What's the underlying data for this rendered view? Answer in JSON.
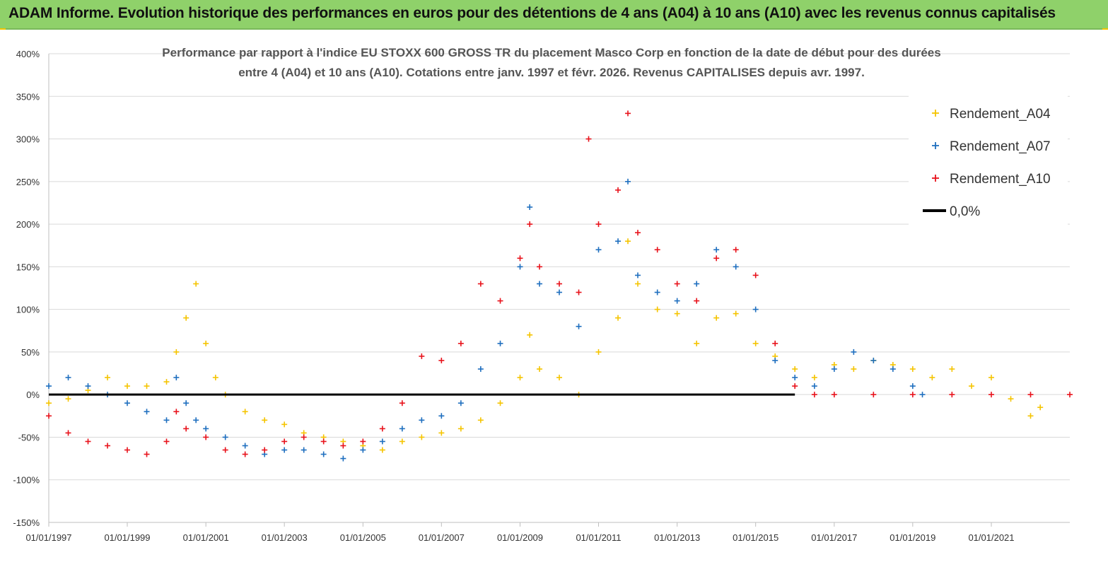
{
  "banner": {
    "title": "ADAM Informe. Evolution historique des performances en euros pour des détentions de 4 ans (A04) à 10 ans (A10) avec les revenus connus capitalisés"
  },
  "colors": {
    "banner": "#8fd16a",
    "A04": "#f5c400",
    "A07": "#1f6fbf",
    "A10": "#e8121b",
    "zero_line": "#000000",
    "grid": "#d9d9d9"
  },
  "chart_data": {
    "type": "scatter",
    "title_line1": "Performance par rapport à l'indice EU STOXX 600 GROSS TR  du placement Masco Corp en fonction de la date de début pour des durées",
    "title_line2": "entre 4 (A04) et 10 ans (A10). Cotations entre janv. 1997 et févr. 2026. Revenus CAPITALISES depuis avr. 1997.",
    "xlabel": "",
    "ylabel": "",
    "y_ticks": [
      "400%",
      "350%",
      "300%",
      "250%",
      "200%",
      "150%",
      "100%",
      "50%",
      "0%",
      "-50%",
      "-100%",
      "-150%"
    ],
    "ylim": [
      -150,
      400
    ],
    "x_ticks": [
      "01/01/1997",
      "01/01/1999",
      "01/01/2001",
      "01/01/2003",
      "01/01/2005",
      "01/01/2007",
      "01/01/2009",
      "01/01/2011",
      "01/01/2013",
      "01/01/2015",
      "01/01/2017",
      "01/01/2019",
      "01/01/2021"
    ],
    "xlim": [
      "1997-01-01",
      "2023-01-01"
    ],
    "grid": "horizontal",
    "legend_position": "top-right",
    "legend": [
      "Rendement_A04",
      "Rendement_A07",
      "Rendement_A10",
      "0,0%"
    ],
    "series": [
      {
        "name": "Rendement_A04",
        "x": [
          "1997-01",
          "1997-07",
          "1998-01",
          "1998-07",
          "1999-01",
          "1999-07",
          "2000-01",
          "2000-04",
          "2000-07",
          "2000-10",
          "2001-01",
          "2001-04",
          "2001-07",
          "2002-01",
          "2002-07",
          "2003-01",
          "2003-07",
          "2004-01",
          "2004-07",
          "2005-01",
          "2005-07",
          "2006-01",
          "2006-07",
          "2007-01",
          "2007-07",
          "2008-01",
          "2008-07",
          "2009-01",
          "2009-04",
          "2009-07",
          "2010-01",
          "2010-07",
          "2011-01",
          "2011-07",
          "2011-10",
          "2012-01",
          "2012-07",
          "2013-01",
          "2013-07",
          "2014-01",
          "2014-07",
          "2015-01",
          "2015-07",
          "2016-01",
          "2016-07",
          "2017-01",
          "2017-07",
          "2018-01",
          "2018-07",
          "2019-01",
          "2019-07",
          "2020-01",
          "2020-07",
          "2021-01",
          "2021-07",
          "2022-01",
          "2022-04"
        ],
        "values": [
          -10,
          -5,
          5,
          20,
          10,
          10,
          15,
          50,
          90,
          130,
          60,
          20,
          0,
          -20,
          -30,
          -35,
          -45,
          -50,
          -55,
          -60,
          -65,
          -55,
          -50,
          -45,
          -40,
          -30,
          -10,
          20,
          70,
          30,
          20,
          0,
          50,
          90,
          180,
          130,
          100,
          95,
          60,
          90,
          95,
          60,
          45,
          30,
          20,
          35,
          30,
          40,
          35,
          30,
          20,
          30,
          10,
          20,
          -5,
          -25,
          -15
        ]
      },
      {
        "name": "Rendement_A07",
        "x": [
          "1997-01",
          "1997-07",
          "1998-01",
          "1998-07",
          "1999-01",
          "1999-07",
          "2000-01",
          "2000-04",
          "2000-07",
          "2000-10",
          "2001-01",
          "2001-07",
          "2002-01",
          "2002-07",
          "2003-01",
          "2003-07",
          "2004-01",
          "2004-07",
          "2005-01",
          "2005-07",
          "2006-01",
          "2006-07",
          "2007-01",
          "2007-07",
          "2008-01",
          "2008-07",
          "2009-01",
          "2009-04",
          "2009-07",
          "2010-01",
          "2010-07",
          "2011-01",
          "2011-07",
          "2011-10",
          "2012-01",
          "2012-07",
          "2013-01",
          "2013-07",
          "2014-01",
          "2014-07",
          "2015-01",
          "2015-07",
          "2016-01",
          "2016-07",
          "2017-01",
          "2017-07",
          "2018-01",
          "2018-07",
          "2019-01",
          "2019-04"
        ],
        "values": [
          10,
          20,
          10,
          0,
          -10,
          -20,
          -30,
          20,
          -10,
          -30,
          -40,
          -50,
          -60,
          -70,
          -65,
          -65,
          -70,
          -75,
          -65,
          -55,
          -40,
          -30,
          -25,
          -10,
          30,
          60,
          150,
          220,
          130,
          120,
          80,
          170,
          180,
          250,
          140,
          120,
          110,
          130,
          170,
          150,
          100,
          40,
          20,
          10,
          30,
          50,
          40,
          30,
          10,
          0
        ]
      },
      {
        "name": "Rendement_A10",
        "x": [
          "1997-01",
          "1997-07",
          "1998-01",
          "1998-07",
          "1999-01",
          "1999-07",
          "2000-01",
          "2000-04",
          "2000-07",
          "2001-01",
          "2001-07",
          "2002-01",
          "2002-07",
          "2003-01",
          "2003-07",
          "2004-01",
          "2004-07",
          "2005-01",
          "2005-07",
          "2006-01",
          "2006-07",
          "2007-01",
          "2007-07",
          "2008-01",
          "2008-07",
          "2009-01",
          "2009-04",
          "2009-07",
          "2010-01",
          "2010-07",
          "2010-10",
          "2011-01",
          "2011-07",
          "2011-10",
          "2012-01",
          "2012-07",
          "2013-01",
          "2013-07",
          "2014-01",
          "2014-07",
          "2015-01",
          "2015-07",
          "2016-01",
          "2016-07",
          "2017-01",
          "2018-01",
          "2019-01",
          "2020-01",
          "2021-01",
          "2022-01",
          "2023-01"
        ],
        "values": [
          -25,
          -45,
          -55,
          -60,
          -65,
          -70,
          -55,
          -20,
          -40,
          -50,
          -65,
          -70,
          -65,
          -55,
          -50,
          -55,
          -60,
          -55,
          -40,
          -10,
          45,
          40,
          60,
          130,
          110,
          160,
          200,
          150,
          130,
          120,
          300,
          200,
          240,
          330,
          190,
          170,
          130,
          110,
          160,
          170,
          140,
          60,
          10,
          0,
          0,
          0,
          0,
          0,
          0,
          0,
          0
        ]
      },
      {
        "name": "0,0%",
        "x": [
          "1997-01",
          "2016-01"
        ],
        "values": [
          0,
          0
        ]
      }
    ]
  }
}
